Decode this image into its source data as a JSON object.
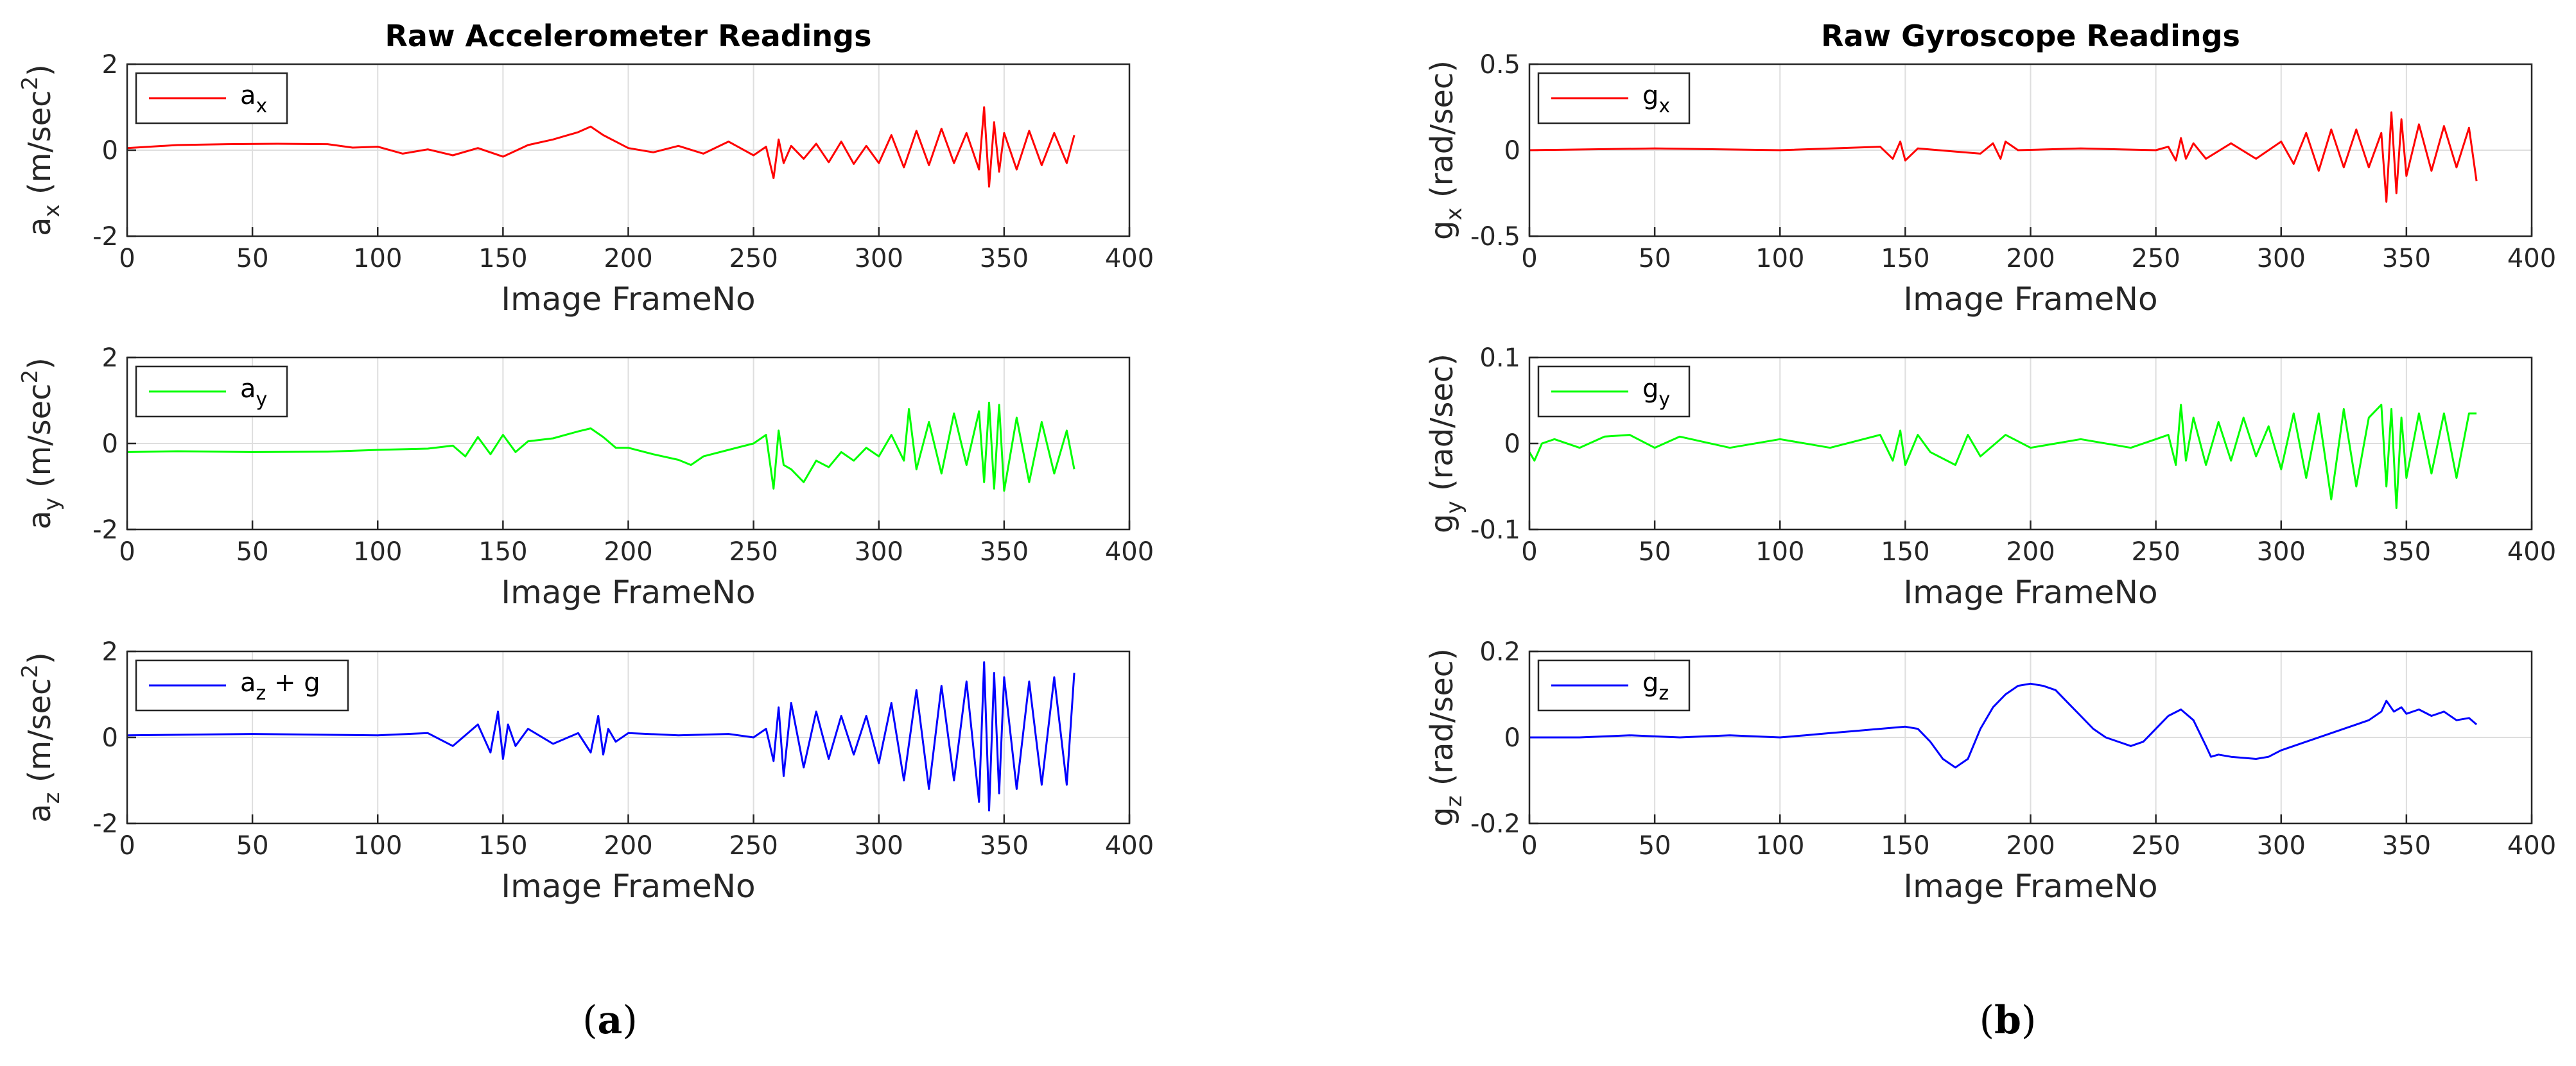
{
  "figure_labels": {
    "a": "a",
    "b": "b"
  },
  "chart_data": [
    {
      "type": "line",
      "panel": "a",
      "row": 0,
      "title": "Raw Accelerometer Readings",
      "xlabel": "Image FrameNo",
      "ylabel": {
        "base": "a",
        "sub": "x",
        "unit": " (m/sec",
        "sup": "2",
        "close": ")"
      },
      "xlim": [
        0,
        400
      ],
      "ylim": [
        -2,
        2
      ],
      "xticks": [
        "0",
        "50",
        "100",
        "150",
        "200",
        "250",
        "300",
        "350",
        "400"
      ],
      "yticks": [
        "-2",
        "0",
        "2"
      ],
      "ytick_values": [
        -2,
        0,
        2
      ],
      "grid": true,
      "legend_position": "top-left",
      "series": [
        {
          "name": {
            "base": "a",
            "sub": "x",
            "suffix": ""
          },
          "color": "#ff0000",
          "x": [
            0,
            20,
            40,
            60,
            80,
            90,
            100,
            110,
            120,
            130,
            140,
            150,
            160,
            170,
            180,
            185,
            190,
            200,
            210,
            220,
            230,
            240,
            250,
            255,
            258,
            260,
            262,
            265,
            270,
            275,
            280,
            285,
            290,
            295,
            300,
            305,
            310,
            315,
            320,
            325,
            330,
            335,
            340,
            342,
            344,
            346,
            348,
            350,
            355,
            360,
            365,
            370,
            375,
            378
          ],
          "y": [
            0.05,
            0.12,
            0.14,
            0.15,
            0.14,
            0.06,
            0.08,
            -0.08,
            0.02,
            -0.12,
            0.05,
            -0.15,
            0.12,
            0.25,
            0.42,
            0.55,
            0.35,
            0.05,
            -0.05,
            0.1,
            -0.08,
            0.2,
            -0.12,
            0.08,
            -0.65,
            0.25,
            -0.3,
            0.1,
            -0.2,
            0.15,
            -0.28,
            0.2,
            -0.32,
            0.1,
            -0.3,
            0.35,
            -0.4,
            0.45,
            -0.35,
            0.5,
            -0.3,
            0.4,
            -0.45,
            1.0,
            -0.85,
            0.65,
            -0.5,
            0.4,
            -0.45,
            0.45,
            -0.35,
            0.4,
            -0.3,
            0.35
          ]
        }
      ]
    },
    {
      "type": "line",
      "panel": "a",
      "row": 1,
      "title": "",
      "xlabel": "Image FrameNo",
      "ylabel": {
        "base": "a",
        "sub": "y",
        "unit": " (m/sec",
        "sup": "2",
        "close": ")"
      },
      "xlim": [
        0,
        400
      ],
      "ylim": [
        -2,
        2
      ],
      "xticks": [
        "0",
        "50",
        "100",
        "150",
        "200",
        "250",
        "300",
        "350",
        "400"
      ],
      "yticks": [
        "-2",
        "0",
        "2"
      ],
      "ytick_values": [
        -2,
        0,
        2
      ],
      "grid": true,
      "legend_position": "top-left",
      "series": [
        {
          "name": {
            "base": "a",
            "sub": "y",
            "suffix": ""
          },
          "color": "#00ff00",
          "x": [
            0,
            20,
            50,
            80,
            100,
            120,
            130,
            135,
            140,
            145,
            150,
            155,
            160,
            170,
            180,
            185,
            190,
            195,
            200,
            210,
            220,
            225,
            230,
            240,
            250,
            255,
            258,
            260,
            262,
            265,
            270,
            275,
            280,
            285,
            290,
            295,
            300,
            305,
            310,
            312,
            315,
            320,
            325,
            330,
            335,
            340,
            342,
            344,
            346,
            348,
            350,
            355,
            360,
            365,
            370,
            375,
            378
          ],
          "y": [
            -0.2,
            -0.18,
            -0.2,
            -0.19,
            -0.15,
            -0.12,
            -0.05,
            -0.3,
            0.15,
            -0.25,
            0.2,
            -0.2,
            0.05,
            0.12,
            0.28,
            0.35,
            0.15,
            -0.1,
            -0.1,
            -0.25,
            -0.38,
            -0.5,
            -0.3,
            -0.15,
            0.0,
            0.2,
            -1.05,
            0.3,
            -0.5,
            -0.6,
            -0.9,
            -0.4,
            -0.55,
            -0.2,
            -0.4,
            -0.1,
            -0.3,
            0.2,
            -0.4,
            0.8,
            -0.6,
            0.5,
            -0.7,
            0.7,
            -0.5,
            0.75,
            -0.9,
            0.95,
            -1.05,
            0.9,
            -1.1,
            0.6,
            -0.9,
            0.5,
            -0.7,
            0.3,
            -0.6
          ]
        }
      ]
    },
    {
      "type": "line",
      "panel": "a",
      "row": 2,
      "title": "",
      "xlabel": "Image FrameNo",
      "ylabel": {
        "base": "a",
        "sub": "z",
        "unit": " (m/sec",
        "sup": "2",
        "close": ")"
      },
      "xlim": [
        0,
        400
      ],
      "ylim": [
        -2,
        2
      ],
      "xticks": [
        "0",
        "50",
        "100",
        "150",
        "200",
        "250",
        "300",
        "350",
        "400"
      ],
      "yticks": [
        "-2",
        "0",
        "2"
      ],
      "ytick_values": [
        -2,
        0,
        2
      ],
      "grid": true,
      "legend_position": "top-left",
      "series": [
        {
          "name": {
            "base": "a",
            "sub": "z",
            "suffix": " + g"
          },
          "color": "#0000ff",
          "x": [
            0,
            50,
            100,
            120,
            130,
            140,
            145,
            148,
            150,
            152,
            155,
            160,
            170,
            180,
            185,
            188,
            190,
            192,
            195,
            200,
            220,
            240,
            250,
            255,
            258,
            260,
            262,
            265,
            270,
            275,
            280,
            285,
            290,
            295,
            300,
            305,
            310,
            315,
            320,
            325,
            330,
            335,
            340,
            342,
            344,
            346,
            348,
            350,
            355,
            360,
            365,
            370,
            375,
            378
          ],
          "y": [
            0.05,
            0.08,
            0.05,
            0.1,
            -0.2,
            0.3,
            -0.35,
            0.6,
            -0.5,
            0.3,
            -0.2,
            0.2,
            -0.15,
            0.1,
            -0.35,
            0.5,
            -0.4,
            0.2,
            -0.1,
            0.1,
            0.05,
            0.08,
            0.0,
            0.2,
            -0.55,
            0.7,
            -0.9,
            0.8,
            -0.7,
            0.6,
            -0.5,
            0.5,
            -0.4,
            0.5,
            -0.6,
            0.8,
            -1.0,
            1.1,
            -1.2,
            1.2,
            -1.0,
            1.3,
            -1.5,
            1.75,
            -1.7,
            1.5,
            -1.3,
            1.4,
            -1.2,
            1.3,
            -1.1,
            1.4,
            -1.1,
            1.5
          ]
        }
      ]
    },
    {
      "type": "line",
      "panel": "b",
      "row": 0,
      "title": "Raw Gyroscope Readings",
      "xlabel": "Image FrameNo",
      "ylabel": {
        "base": "g",
        "sub": "x",
        "unit": " (rad/sec)",
        "sup": "",
        "close": ""
      },
      "xlim": [
        0,
        400
      ],
      "ylim": [
        -0.5,
        0.5
      ],
      "xticks": [
        "0",
        "50",
        "100",
        "150",
        "200",
        "250",
        "300",
        "350",
        "400"
      ],
      "yticks": [
        "-0.5",
        "0",
        "0.5"
      ],
      "ytick_values": [
        -0.5,
        0,
        0.5
      ],
      "grid": true,
      "legend_position": "top-left",
      "series": [
        {
          "name": {
            "base": "g",
            "sub": "x",
            "suffix": ""
          },
          "color": "#ff0000",
          "x": [
            0,
            50,
            100,
            140,
            145,
            148,
            150,
            155,
            180,
            185,
            188,
            190,
            195,
            220,
            250,
            255,
            258,
            260,
            262,
            265,
            270,
            280,
            290,
            300,
            305,
            310,
            315,
            320,
            325,
            330,
            335,
            340,
            342,
            344,
            346,
            348,
            350,
            355,
            360,
            365,
            370,
            375,
            378
          ],
          "y": [
            0.0,
            0.01,
            0.0,
            0.02,
            -0.05,
            0.05,
            -0.06,
            0.01,
            -0.02,
            0.04,
            -0.05,
            0.05,
            0.0,
            0.01,
            0.0,
            0.02,
            -0.06,
            0.07,
            -0.05,
            0.04,
            -0.05,
            0.04,
            -0.05,
            0.05,
            -0.08,
            0.1,
            -0.12,
            0.12,
            -0.1,
            0.12,
            -0.1,
            0.1,
            -0.3,
            0.22,
            -0.25,
            0.18,
            -0.15,
            0.15,
            -0.12,
            0.14,
            -0.1,
            0.13,
            -0.18
          ]
        }
      ]
    },
    {
      "type": "line",
      "panel": "b",
      "row": 1,
      "title": "",
      "xlabel": "Image FrameNo",
      "ylabel": {
        "base": "g",
        "sub": "y",
        "unit": " (rad/sec)",
        "sup": "",
        "close": ""
      },
      "xlim": [
        0,
        400
      ],
      "ylim": [
        -0.1,
        0.1
      ],
      "xticks": [
        "0",
        "50",
        "100",
        "150",
        "200",
        "250",
        "300",
        "350",
        "400"
      ],
      "yticks": [
        "-0.1",
        "0",
        "0.1"
      ],
      "ytick_values": [
        -0.1,
        0,
        0.1
      ],
      "grid": true,
      "legend_position": "top-left",
      "series": [
        {
          "name": {
            "base": "g",
            "sub": "y",
            "suffix": ""
          },
          "color": "#00ff00",
          "x": [
            0,
            2,
            5,
            10,
            20,
            30,
            40,
            50,
            60,
            80,
            100,
            120,
            140,
            145,
            148,
            150,
            155,
            160,
            170,
            175,
            180,
            190,
            200,
            220,
            240,
            250,
            255,
            258,
            260,
            262,
            265,
            270,
            275,
            280,
            285,
            290,
            295,
            300,
            305,
            310,
            315,
            320,
            325,
            330,
            335,
            340,
            342,
            344,
            346,
            348,
            350,
            355,
            360,
            365,
            370,
            375,
            378
          ],
          "y": [
            -0.01,
            -0.02,
            0.0,
            0.005,
            -0.005,
            0.008,
            0.01,
            -0.005,
            0.008,
            -0.005,
            0.005,
            -0.005,
            0.01,
            -0.02,
            0.015,
            -0.025,
            0.01,
            -0.01,
            -0.025,
            0.01,
            -0.015,
            0.01,
            -0.005,
            0.005,
            -0.005,
            0.005,
            0.01,
            -0.025,
            0.045,
            -0.02,
            0.03,
            -0.025,
            0.025,
            -0.02,
            0.03,
            -0.015,
            0.02,
            -0.03,
            0.035,
            -0.04,
            0.035,
            -0.065,
            0.04,
            -0.05,
            0.03,
            0.045,
            -0.05,
            0.04,
            -0.075,
            0.03,
            -0.04,
            0.035,
            -0.035,
            0.035,
            -0.04,
            0.035,
            0.035
          ]
        }
      ]
    },
    {
      "type": "line",
      "panel": "b",
      "row": 2,
      "title": "",
      "xlabel": "Image FrameNo",
      "ylabel": {
        "base": "g",
        "sub": "z",
        "unit": " (rad/sec)",
        "sup": "",
        "close": ""
      },
      "xlim": [
        0,
        400
      ],
      "ylim": [
        -0.2,
        0.2
      ],
      "xticks": [
        "0",
        "50",
        "100",
        "150",
        "200",
        "250",
        "300",
        "350",
        "400"
      ],
      "yticks": [
        "-0.2",
        "0",
        "0.2"
      ],
      "ytick_values": [
        -0.2,
        0,
        0.2
      ],
      "grid": true,
      "legend_position": "top-left",
      "series": [
        {
          "name": {
            "base": "g",
            "sub": "z",
            "suffix": ""
          },
          "color": "#0000ff",
          "x": [
            0,
            20,
            40,
            60,
            80,
            100,
            110,
            120,
            130,
            140,
            150,
            155,
            160,
            165,
            170,
            175,
            180,
            185,
            190,
            195,
            200,
            205,
            210,
            215,
            220,
            225,
            230,
            240,
            245,
            250,
            255,
            260,
            265,
            270,
            272,
            275,
            280,
            290,
            295,
            300,
            310,
            320,
            330,
            335,
            340,
            342,
            345,
            348,
            350,
            355,
            360,
            365,
            370,
            375,
            378
          ],
          "y": [
            0.0,
            0.0,
            0.005,
            0.0,
            0.005,
            0.0,
            0.005,
            0.01,
            0.015,
            0.02,
            0.025,
            0.02,
            -0.01,
            -0.05,
            -0.07,
            -0.05,
            0.02,
            0.07,
            0.1,
            0.12,
            0.125,
            0.12,
            0.11,
            0.08,
            0.05,
            0.02,
            0.0,
            -0.02,
            -0.01,
            0.02,
            0.05,
            0.065,
            0.04,
            -0.02,
            -0.045,
            -0.04,
            -0.045,
            -0.05,
            -0.045,
            -0.03,
            -0.01,
            0.01,
            0.03,
            0.04,
            0.06,
            0.085,
            0.06,
            0.07,
            0.055,
            0.065,
            0.05,
            0.06,
            0.04,
            0.045,
            0.03
          ]
        }
      ]
    }
  ]
}
